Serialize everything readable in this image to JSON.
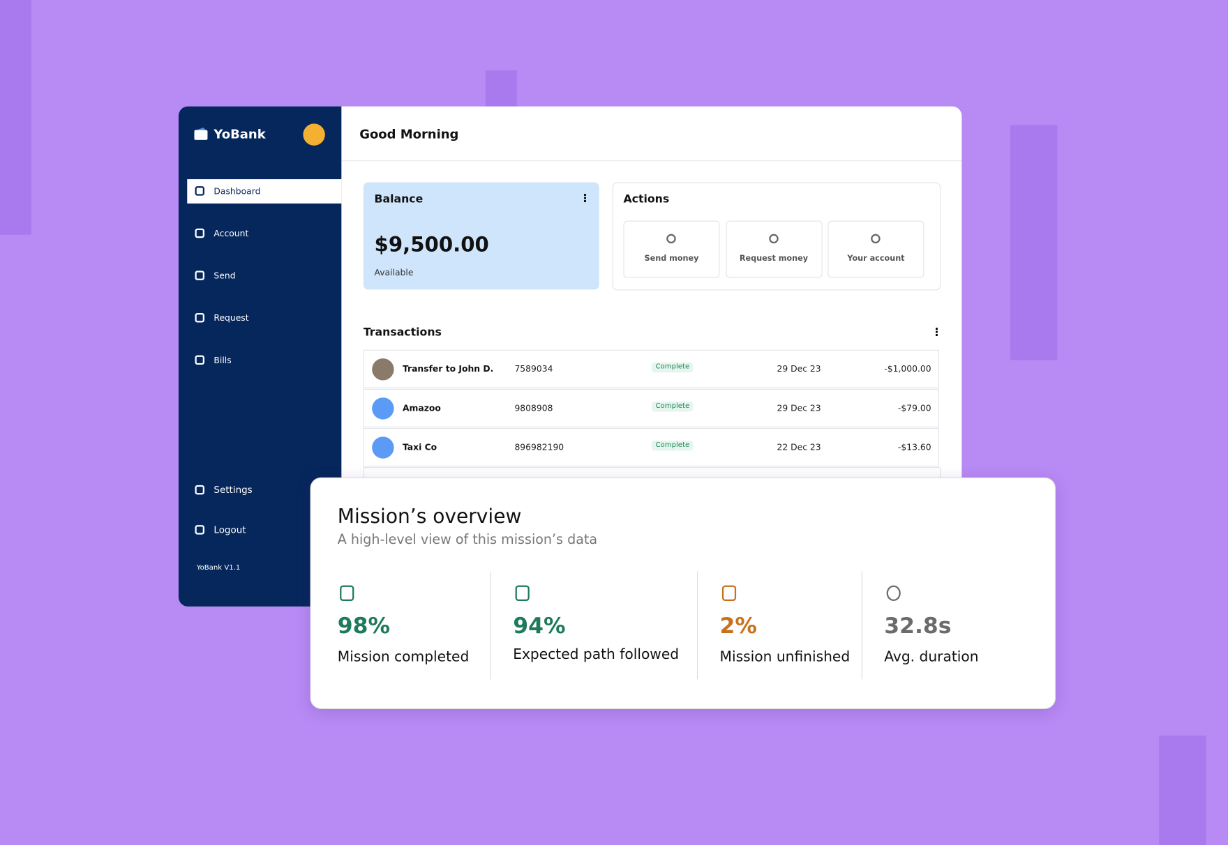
{
  "sidebar": {
    "brand": "YoBank",
    "items": [
      "Dashboard",
      "Account",
      "Send",
      "Request",
      "Bills"
    ],
    "bottom_items": [
      "Settings",
      "Logout"
    ],
    "version": "YoBank V1.1"
  },
  "header": {
    "title": "Good Morning"
  },
  "balance": {
    "title": "Balance",
    "amount": "$9,500.00",
    "caption": "Available"
  },
  "actions": {
    "title": "Actions",
    "buttons": [
      "Send money",
      "Request money",
      "Your account"
    ]
  },
  "transactions": {
    "title": "Transactions",
    "rows": [
      [
        "Transfer to John D.",
        "7589034",
        "Complete",
        "29 Dec 23",
        "-$1,000.00"
      ],
      [
        "Amazoo",
        "9808908",
        "Complete",
        "29 Dec 23",
        "-$79.00"
      ],
      [
        "Taxi Co",
        "896982190",
        "Complete",
        "22 Dec 23",
        "-$13.60"
      ]
    ]
  },
  "overview": {
    "title": "Mission’s overview",
    "subtitle": "A high-level view of this mission’s data",
    "stats": [
      {
        "value": "98%",
        "label": "Mission completed"
      },
      {
        "value": "94%",
        "label": "Expected path followed"
      },
      {
        "value": "2%",
        "label": "Mission unfinished"
      },
      {
        "value": "32.8s",
        "label": "Avg. duration"
      }
    ]
  }
}
